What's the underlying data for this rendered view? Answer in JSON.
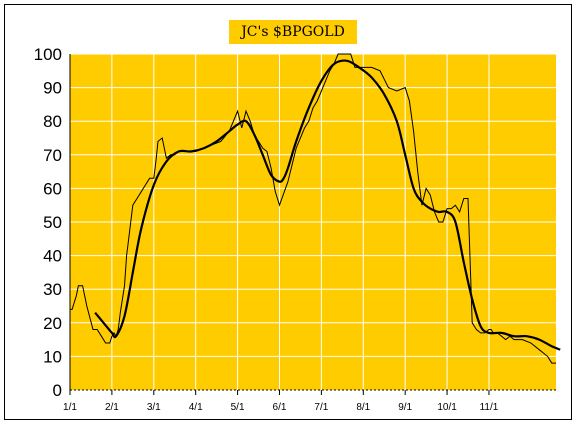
{
  "chart_data": {
    "type": "line",
    "title": "JC's $BPGOLD",
    "xlabel": "",
    "ylabel": "",
    "ylim": [
      0,
      100
    ],
    "yticks": [
      0,
      10,
      20,
      30,
      40,
      50,
      60,
      70,
      80,
      90,
      100
    ],
    "xticks": [
      "1/1",
      "2/1",
      "3/1",
      "4/1",
      "5/1",
      "6/1",
      "7/1",
      "8/1",
      "9/1",
      "10/1",
      "11/1"
    ],
    "grid": true,
    "background": "#ffcc00",
    "series": [
      {
        "style": "thin-step",
        "x": [
          0,
          0.05,
          0.15,
          0.2,
          0.3,
          0.4,
          0.55,
          0.65,
          0.75,
          0.85,
          0.95,
          1.0,
          1.05,
          1.1,
          1.15,
          1.2,
          1.3,
          1.35,
          1.4,
          1.5,
          1.6,
          1.7,
          1.8,
          1.9,
          2.0,
          2.05,
          2.1,
          2.2,
          2.3,
          2.4,
          2.5,
          2.6,
          2.7,
          2.8,
          2.9,
          3.0,
          3.2,
          3.4,
          3.6,
          3.8,
          4.0,
          4.1,
          4.2,
          4.3,
          4.4,
          4.5,
          4.6,
          4.7,
          4.8,
          4.9,
          5.0,
          5.2,
          5.4,
          5.6,
          5.7,
          5.8,
          5.9,
          6.0,
          6.1,
          6.2,
          6.3,
          6.4,
          6.5,
          6.6,
          6.7,
          6.8,
          6.9,
          7.0,
          7.1,
          7.2,
          7.4,
          7.6,
          7.8,
          8.0,
          8.1,
          8.2,
          8.3,
          8.4,
          8.5,
          8.6,
          8.7,
          8.8,
          8.9,
          9.0,
          9.1,
          9.2,
          9.3,
          9.4,
          9.5,
          9.6,
          9.7,
          9.8,
          9.9,
          10.0,
          10.05,
          10.1,
          10.2,
          10.3,
          10.4,
          10.5,
          10.6,
          10.8,
          11.0,
          11.2,
          11.3,
          11.4,
          11.45,
          11.5,
          11.55,
          11.6
        ],
        "y": [
          24,
          24,
          28,
          31,
          31,
          25,
          18,
          18,
          16,
          14,
          14,
          16,
          17,
          16,
          18,
          23,
          31,
          40,
          45,
          55,
          57,
          59,
          61,
          63,
          63,
          68,
          74,
          75,
          69,
          70,
          70,
          71,
          71,
          71,
          71,
          71,
          72,
          73,
          74,
          77,
          83,
          78,
          83,
          80,
          76,
          74,
          72,
          71,
          66,
          59,
          55,
          62,
          72,
          78,
          80,
          84,
          86,
          89,
          92,
          95,
          97,
          100,
          100,
          100,
          100,
          96,
          96,
          96,
          96,
          96,
          95,
          90,
          89,
          90,
          86,
          77,
          65,
          55,
          60,
          58,
          53,
          50,
          50,
          54,
          54,
          55,
          53,
          57,
          57,
          20,
          18,
          17,
          17,
          18,
          18,
          17,
          17,
          16,
          15,
          16,
          15,
          15,
          14,
          12,
          11,
          10,
          9,
          8,
          8,
          8
        ]
      },
      {
        "style": "thick-smooth",
        "x": [
          0.6,
          0.8,
          1.0,
          1.1,
          1.3,
          1.5,
          1.7,
          2.0,
          2.3,
          2.6,
          2.9,
          3.2,
          3.5,
          3.8,
          4.0,
          4.2,
          4.4,
          4.6,
          4.8,
          5.0,
          5.1,
          5.2,
          5.4,
          5.7,
          6.0,
          6.3,
          6.6,
          6.9,
          7.2,
          7.5,
          7.8,
          8.0,
          8.2,
          8.4,
          8.6,
          8.8,
          9.0,
          9.2,
          9.4,
          9.6,
          9.8,
          10.0,
          10.3,
          10.6,
          10.9,
          11.2,
          11.5,
          11.7
        ],
        "y": [
          23,
          20,
          17,
          16,
          22,
          35,
          48,
          61,
          68,
          71,
          71,
          72,
          74,
          77,
          79,
          80,
          76,
          70,
          64,
          62,
          63,
          66,
          74,
          84,
          92,
          97,
          98,
          96,
          93,
          88,
          80,
          70,
          60,
          56,
          54,
          53,
          53,
          50,
          38,
          27,
          19,
          17,
          17,
          16,
          16,
          15,
          13,
          12
        ]
      }
    ]
  }
}
